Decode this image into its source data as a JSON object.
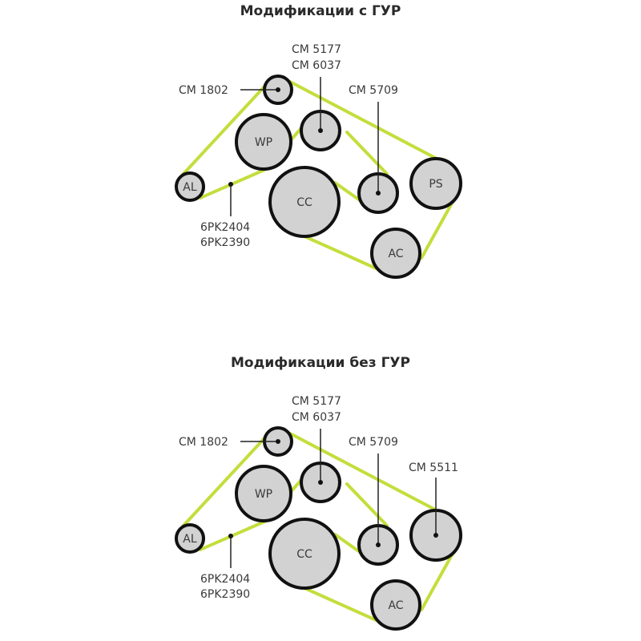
{
  "diagrams": [
    {
      "title": "Модификации с ГУР",
      "pulleys": {
        "wp": "WP",
        "al": "AL",
        "cc": "CC",
        "ps": "PS",
        "ac": "AC"
      },
      "labels": {
        "idler_top": "CM 1802",
        "idler_mid_1": "CM 5177",
        "idler_mid_2": "CM 6037",
        "idler_right": "CM 5709",
        "belt_1": "6PK2404",
        "belt_2": "6PK2390"
      }
    },
    {
      "title": "Модификации без ГУР",
      "pulleys": {
        "wp": "WP",
        "al": "AL",
        "cc": "CC",
        "ac": "AC"
      },
      "labels": {
        "idler_top": "CM 1802",
        "idler_mid_1": "CM 5177",
        "idler_mid_2": "CM 6037",
        "idler_right": "CM 5709",
        "idler_far_right": "CM 5511",
        "belt_1": "6PK2404",
        "belt_2": "6PK2390"
      }
    }
  ],
  "colors": {
    "belt": "#c5dd3c",
    "pulley_fill": "#d2d2d2",
    "pulley_stroke": "#111111"
  }
}
